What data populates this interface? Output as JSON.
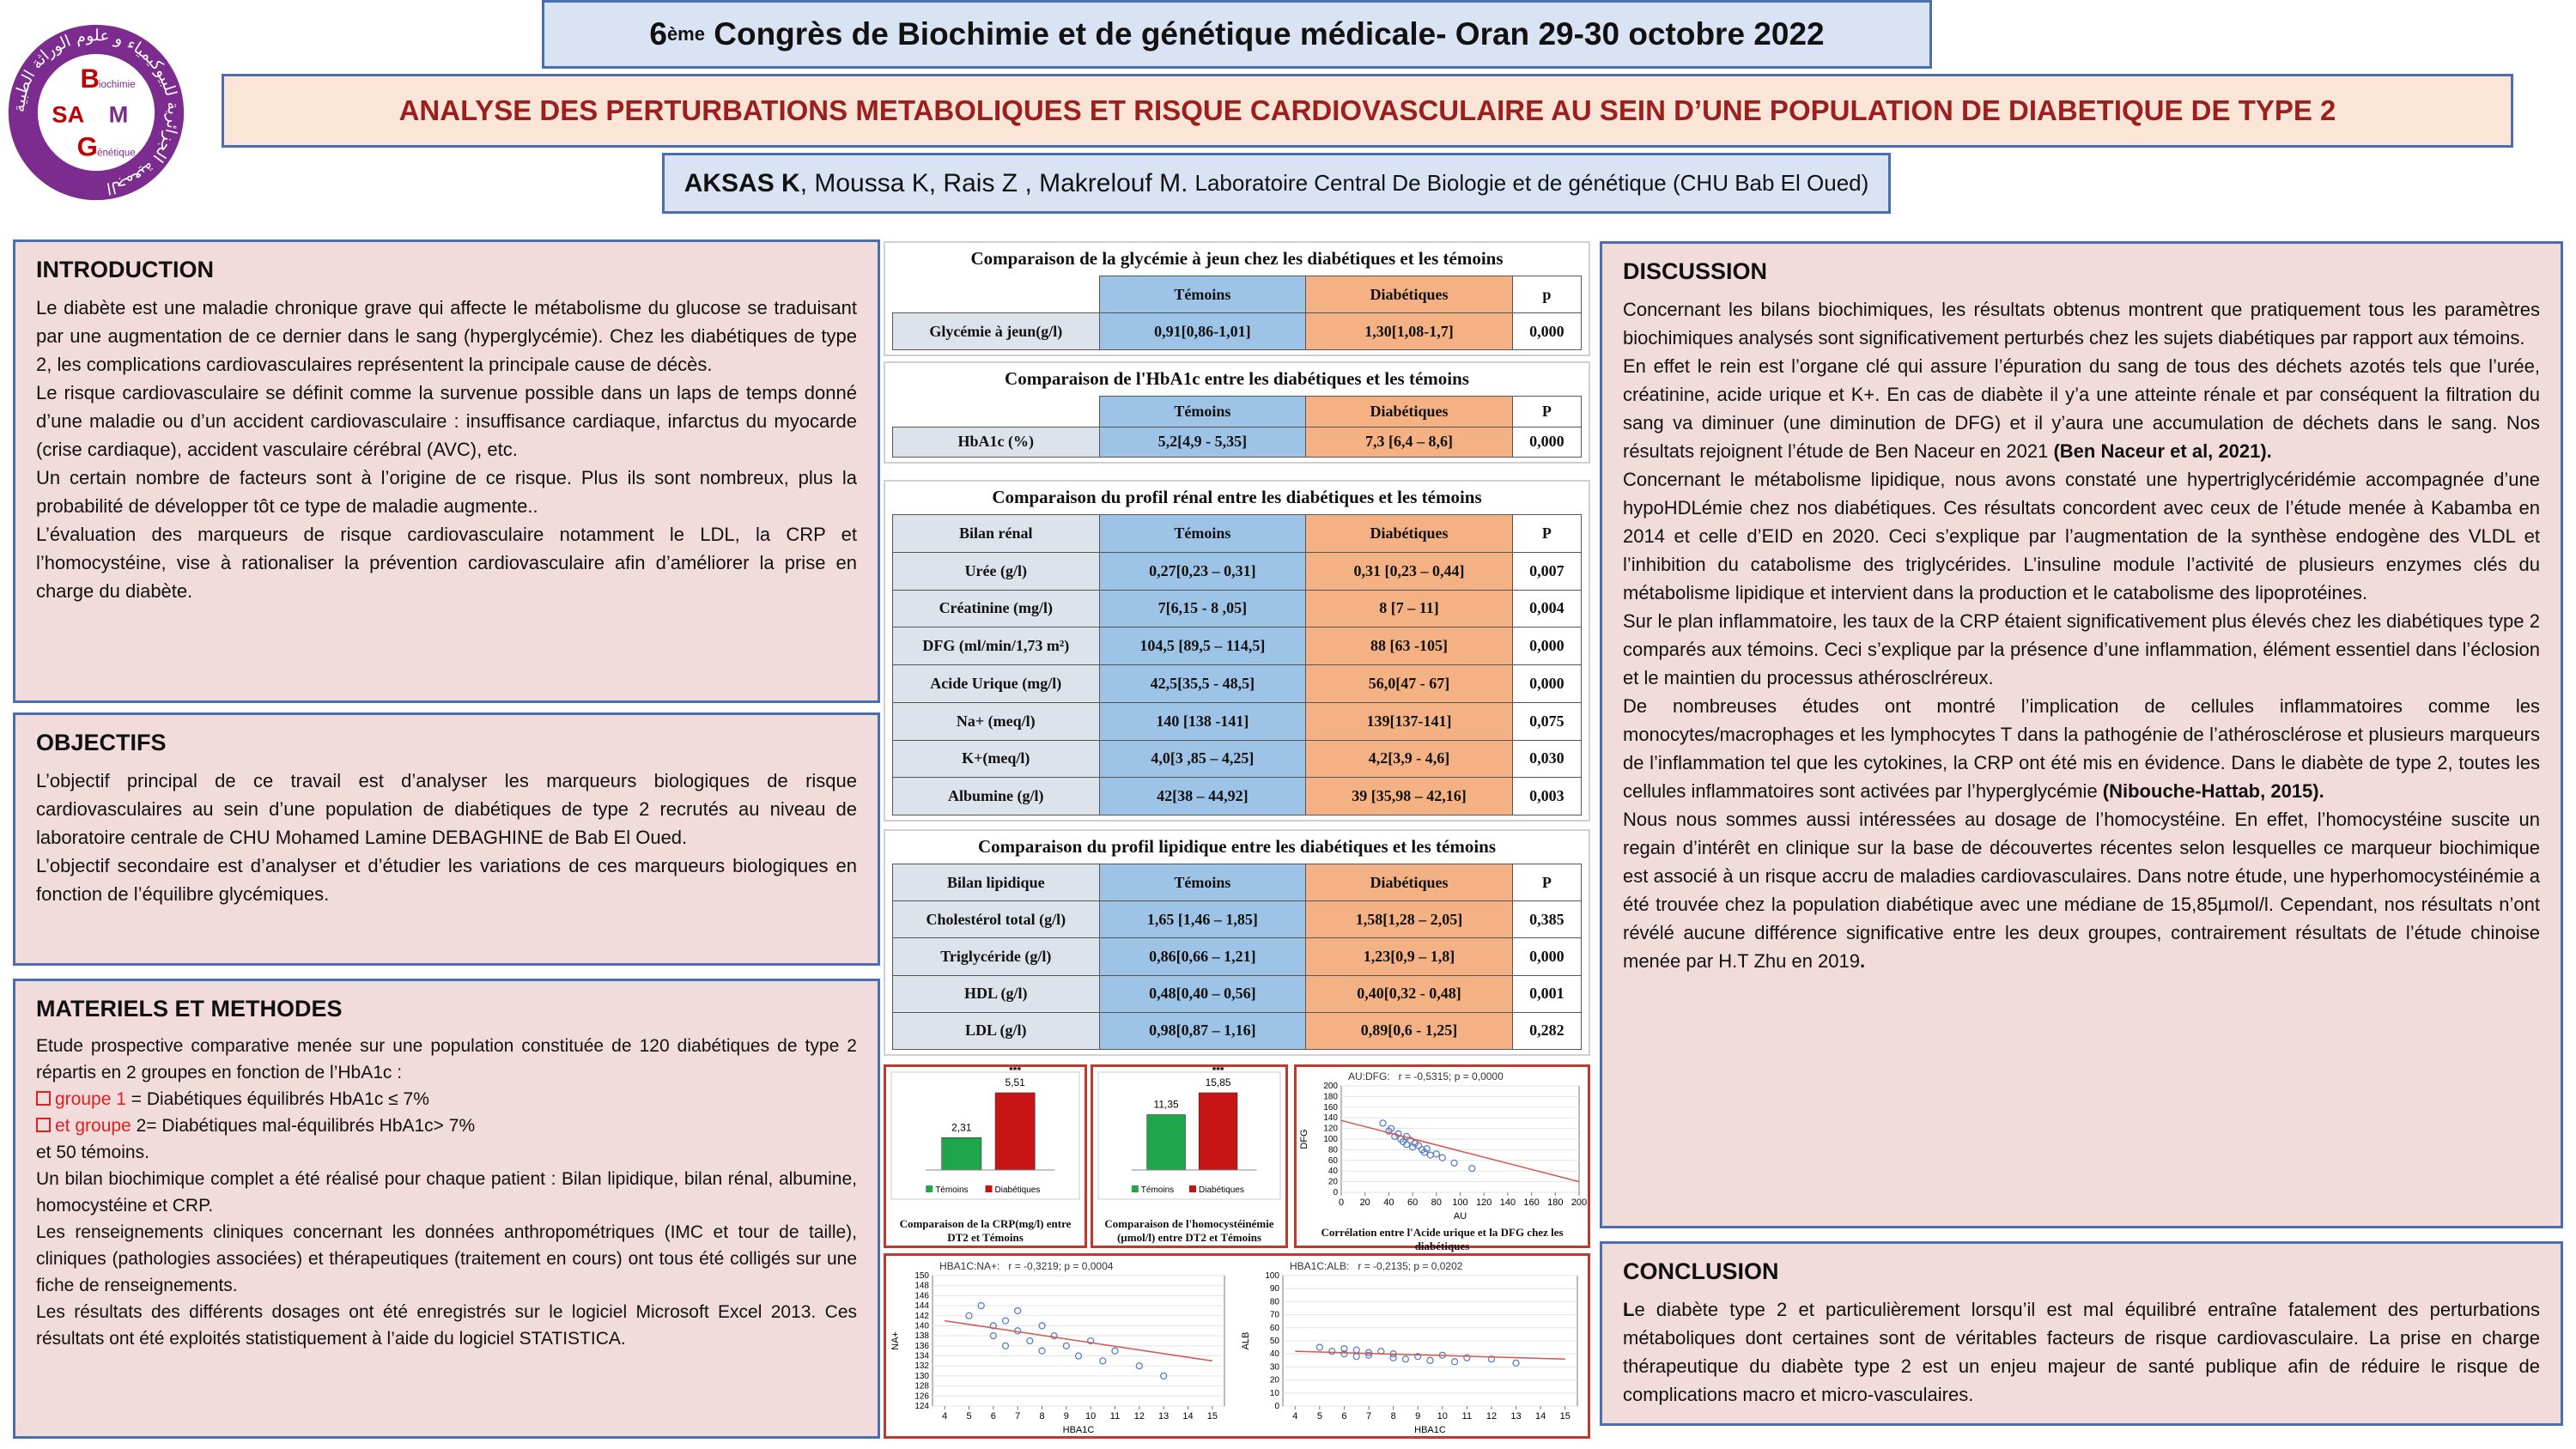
{
  "header": {
    "congress": [
      "6",
      "ème",
      " Congrès de Biochimie et de génétique médicale- Oran 29-30 octobre 2022"
    ],
    "title": "ANALYSE DES PERTURBATIONS METABOLIQUES ET RISQUE CARDIOVASCULAIRE AU SEIN D’UNE POPULATION DE DIABETIQUE DE TYPE 2",
    "authors": [
      "AKSAS K",
      ", Moussa K, Rais Z , Makrelouf M.",
      "Laboratoire Central De Biologie et de génétique (CHU Bab El Oued)"
    ]
  },
  "logo": {
    "arabic": "الجمعية الجزائرية للبيوكيمياء و علوم الوراثة الطبية",
    "letters": [
      "B",
      "iochimie",
      "SA",
      "M",
      "G",
      "énétique"
    ]
  },
  "sections": {
    "introduction": {
      "title": "INTRODUCTION",
      "paragraphs": [
        [
          "Le diabète est une maladie chronique grave qui affecte le métabolisme du glucose se traduisant par une augmentation de ce dernier dans le sang (hyperglycémie). Chez les diabétiques de type 2, les complications cardiovasculaires représentent la principale cause de décès."
        ],
        [
          "Le risque cardiovasculaire se définit comme la survenue possible dans un laps de temps donné d’une maladie ou d’un accident cardiovasculaire : insuffisance cardiaque, infarctus du myocarde (crise cardiaque), accident vasculaire cérébral (AVC), etc."
        ],
        [
          "Un certain nombre de facteurs sont à l’origine de ce risque. Plus ils sont nombreux, plus la probabilité de développer tôt ce type de maladie augmente.."
        ],
        [
          "L’évaluation des marqueurs de risque cardiovasculaire notamment le LDL, la CRP et l’homocystéine, vise à rationaliser la prévention cardiovasculaire afin d’améliorer la prise en charge du diabète."
        ]
      ]
    },
    "objectifs": {
      "title": "OBJECTIFS",
      "paragraphs": [
        [
          "L’objectif principal de ce travail est d’analyser les marqueurs biologiques de risque cardiovasculaires au sein d’une population de diabétiques de type 2 recrutés au niveau de laboratoire centrale de CHU Mohamed Lamine DEBAGHINE de Bab El Oued."
        ],
        [
          "L’objectif secondaire est d’analyser et d’étudier les variations de ces marqueurs biologiques en fonction de l’équilibre glycémiques."
        ]
      ]
    },
    "methodes": {
      "title": "MATERIELS ET METHODES",
      "paragraphs": [
        [
          "Etude prospective comparative menée sur une population constituée de 120 diabétiques de type 2 répartis en 2 groupes en fonction de l’HbA1c :"
        ],
        [
          {
            "text": "groupe 1",
            "style": "red-check"
          },
          " = Diabétiques équilibrés HbA1c ≤ 7%"
        ],
        [
          {
            "text": "et groupe",
            "style": "red-check"
          },
          " 2= Diabétiques mal-équilibrés HbA1c> 7%"
        ],
        [
          "et 50 témoins."
        ],
        [
          "Un bilan biochimique complet a été réalisé pour chaque patient : Bilan lipidique, bilan rénal, albumine, homocystéine et CRP."
        ],
        [
          "Les renseignements cliniques concernant les données anthropométriques (IMC et tour de taille), cliniques (pathologies associées) et thérapeutiques (traitement en cours) ont tous été colligés sur une fiche de renseignements."
        ],
        [
          "Les résultats des différents dosages ont été enregistrés sur le logiciel Microsoft Excel 2013. Ces résultats ont été exploités statistiquement à l’aide du logiciel STATISTICA."
        ]
      ]
    },
    "discussion": {
      "title": "DISCUSSION",
      "paragraphs": [
        [
          "Concernant les bilans biochimiques, les résultats obtenus montrent que pratiquement tous les paramètres biochimiques analysés sont significativement perturbés chez les sujets diabétiques par rapport aux témoins."
        ],
        [
          "En effet le rein est l’organe clé qui assure l’épuration du sang de tous des déchets azotés tels que l’urée, créatinine, acide urique et K+. En cas de diabète il y’a une atteinte rénale et par conséquent la filtration du sang va diminuer (une diminution de DFG) et il y’aura une accumulation de déchets dans le sang. Nos résultats rejoignent l’étude de Ben Naceur en 2021 ",
          {
            "text": "(Ben Naceur et al, 2021).",
            "style": "bold"
          }
        ],
        [
          "Concernant le métabolisme lipidique, nous avons constaté une hypertriglycéridémie accompagnée d’une hypoHDLémie chez nos diabétiques. Ces résultats concordent avec ceux de l’étude menée à Kabamba en 2014 et celle d’EID en 2020. Ceci s’explique par l’augmentation de la synthèse endogène des VLDL et l’inhibition du catabolisme des triglycérides. L’insuline module l’activité de plusieurs enzymes clés du métabolisme lipidique et intervient dans la production et le catabolisme des lipoprotéines."
        ],
        [
          "Sur le plan inflammatoire, les taux de la CRP étaient significativement plus élevés chez les diabétiques type 2 comparés aux témoins. Ceci s’explique par la présence d’une inflammation, élément essentiel dans l’éclosion et le maintien du processus athérosclréreux."
        ],
        [
          "De nombreuses études ont montré l’implication de cellules inflammatoires comme les monocytes/macrophages et les lymphocytes T dans la pathogénie de l’athérosclérose et plusieurs marqueurs de l’inflammation tel que les cytokines, la CRP ont été mis en évidence. Dans le diabète de type 2, toutes les cellules inflammatoires sont activées par l’hyperglycémie ",
          {
            "text": "(Nibouche-Hattab, 2015).",
            "style": "bold"
          }
        ],
        [
          "Nous nous sommes aussi intéressées au dosage de l’homocystéine. En effet, l’homocystéine suscite un regain d’intérêt en clinique sur la base de découvertes récentes selon lesquelles ce marqueur biochimique est associé à un risque accru de maladies cardiovasculaires. Dans notre étude, une hyperhomocystéinémie a été trouvée chez la population diabétique avec une médiane de 15,85µmol/l. Cependant, nos résultats n’ont révélé aucune différence significative entre les deux groupes, contrairement résultats de l’étude chinoise menée par H.T Zhu en 2019",
          {
            "text": ".",
            "style": "bold"
          }
        ]
      ]
    },
    "conclusion": {
      "title": "CONCLUSION",
      "paragraphs": [
        [
          {
            "text": "L",
            "style": "bold"
          },
          "e diabète type 2 et particulièrement lorsqu’il est mal équilibré entraîne fatalement des perturbations métaboliques dont certaines sont de véritables facteurs de risque cardiovasculaire. La prise en charge thérapeutique du diabète type 2 est un enjeu majeur de santé publique afin de réduire le risque de complications macro et micro-vasculaires."
        ]
      ]
    }
  },
  "tables": [
    {
      "title": "Comparaison de la glycémie à jeun chez les diabétiques et les témoins",
      "headers": [
        "Témoins",
        "Diabétiques",
        "p"
      ],
      "rows": [
        [
          "Glycémie à jeun(g/l)",
          "0,91[0,86-1,01]",
          "1,30[1,08-1,7]",
          "0,000"
        ]
      ]
    },
    {
      "title": "Comparaison de l'HbA1c entre les diabétiques et les témoins",
      "headers": [
        "Témoins",
        "Diabétiques",
        "P"
      ],
      "rows": [
        [
          "HbA1c (%)",
          "5,2[4,9 - 5,35]",
          "7,3 [6,4 – 8,6]",
          "0,000"
        ]
      ]
    },
    {
      "title": "Comparaison du profil rénal entre les diabétiques et les témoins",
      "headers": [
        "Bilan rénal",
        "Témoins",
        "Diabétiques",
        "P"
      ],
      "rows": [
        [
          "Urée (g/l)",
          "0,27[0,23 – 0,31]",
          "0,31 [0,23 – 0,44]",
          "0,007"
        ],
        [
          "Créatinine (mg/l)",
          "7[6,15 - 8 ,05]",
          "8 [7 – 11]",
          "0,004"
        ],
        [
          "DFG (ml/min/1,73 m²)",
          "104,5 [89,5 – 114,5]",
          "88 [63 -105]",
          "0,000"
        ],
        [
          "Acide Urique (mg/l)",
          "42,5[35,5 - 48,5]",
          "56,0[47 - 67]",
          "0,000"
        ],
        [
          "Na+ (meq/l)",
          "140 [138 -141]",
          "139[137-141]",
          "0,075"
        ],
        [
          "K+(meq/l)",
          "4,0[3 ,85 – 4,25]",
          "4,2[3,9 - 4,6]",
          "0,030"
        ],
        [
          "Albumine (g/l)",
          "42[38 – 44,92]",
          "39 [35,98 – 42,16]",
          "0,003"
        ]
      ]
    },
    {
      "title": "Comparaison du profil lipidique entre les diabétiques et les témoins",
      "headers": [
        "Bilan lipidique",
        "Témoins",
        "Diabétiques",
        "P"
      ],
      "rows": [
        [
          "Cholestérol total (g/l)",
          "1,65 [1,46 – 1,85]",
          "1,58[1,28 – 2,05]",
          "0,385"
        ],
        [
          "Triglycéride (g/l)",
          "0,86[0,66 – 1,21]",
          "1,23[0,9 – 1,8]",
          "0,000"
        ],
        [
          "HDL (g/l)",
          "0,48[0,40 – 0,56]",
          "0,40[0,32 - 0,48]",
          "0,001"
        ],
        [
          "LDL (g/l)",
          "0,98[0,87 – 1,16]",
          "0,89[0,6 - 1,25]",
          "0,282"
        ]
      ]
    }
  ],
  "figures": [
    {
      "type": "bar",
      "caption": "Comparaison de la CRP(mg/l) entre DT2 et Témoins",
      "categories": [
        "Témoins",
        "Diabétiques"
      ],
      "values": [
        2.31,
        5.51
      ],
      "value_labels": [
        "2,31",
        "5,51"
      ],
      "colors": [
        "#1fa64a",
        "#c81414"
      ],
      "annotation": "***"
    },
    {
      "type": "bar",
      "caption": "Comparaison de l'homocystéinémie (µmol/l) entre DT2 et Témoins",
      "categories": [
        "Témoins",
        "Diabétiques"
      ],
      "values": [
        11.35,
        15.85
      ],
      "value_labels": [
        "11,35",
        "15,85"
      ],
      "colors": [
        "#1fa64a",
        "#c81414"
      ],
      "annotation": "***"
    },
    {
      "type": "scatter",
      "title": "AU:DFG:   r = -0,5315; p = 0,0000",
      "x_label": "AU",
      "y_label": "DFG",
      "caption": "Corrélation entre l'Acide urique et la DFG chez les diabétiques",
      "xlim": [
        0,
        200
      ],
      "ylim": [
        0,
        200
      ],
      "xticks": [
        0,
        20,
        40,
        60,
        80,
        100,
        120,
        140,
        160,
        180,
        200
      ],
      "yticks": [
        0,
        20,
        40,
        60,
        80,
        100,
        120,
        140,
        160,
        180,
        200
      ],
      "x": [
        35,
        40,
        42,
        45,
        48,
        50,
        52,
        55,
        55,
        58,
        60,
        62,
        65,
        68,
        70,
        72,
        75,
        80,
        85,
        95,
        110
      ],
      "values": [
        130,
        115,
        120,
        105,
        110,
        100,
        95,
        105,
        90,
        98,
        85,
        92,
        88,
        80,
        75,
        82,
        70,
        72,
        65,
        55,
        45
      ],
      "trend": {
        "x": [
          0,
          200
        ],
        "y": [
          135,
          20
        ]
      },
      "color": "#5b7fc0",
      "trend_color": "#d9534f"
    },
    {
      "type": "scatter",
      "title": "HBA1C:NA+:   r = -0,3219; p = 0,0004",
      "x_label": "HBA1C",
      "y_label": "NA+",
      "xlim": [
        3.5,
        15.5
      ],
      "ylim": [
        124,
        150
      ],
      "xticks": [
        4,
        5,
        6,
        7,
        8,
        9,
        10,
        11,
        12,
        13,
        14,
        15
      ],
      "yticks": [
        124,
        126,
        128,
        130,
        132,
        134,
        136,
        138,
        140,
        142,
        144,
        146,
        148,
        150
      ],
      "x": [
        5,
        5.5,
        6,
        6,
        6.5,
        6.5,
        7,
        7,
        7.5,
        8,
        8,
        8.5,
        9,
        9.5,
        10,
        10.5,
        11,
        12,
        13
      ],
      "values": [
        142,
        144,
        140,
        138,
        141,
        136,
        143,
        139,
        137,
        140,
        135,
        138,
        136,
        134,
        137,
        133,
        135,
        132,
        130
      ],
      "trend": {
        "x": [
          4,
          15
        ],
        "y": [
          141,
          133
        ]
      },
      "color": "#5b7fc0",
      "trend_color": "#d9534f"
    },
    {
      "type": "scatter",
      "title": "HBA1C:ALB:   r = -0,2135; p = 0,0202",
      "x_label": "HBA1C",
      "y_label": "ALB",
      "xlim": [
        3.5,
        15.5
      ],
      "ylim": [
        0,
        100
      ],
      "xticks": [
        4,
        5,
        6,
        7,
        8,
        9,
        10,
        11,
        12,
        13,
        14,
        15
      ],
      "yticks": [
        0,
        10,
        20,
        30,
        40,
        50,
        60,
        70,
        80,
        90,
        100
      ],
      "x": [
        5,
        5.5,
        6,
        6,
        6.5,
        6.5,
        7,
        7,
        7.5,
        8,
        8,
        8.5,
        9,
        9.5,
        10,
        10.5,
        11,
        12,
        13
      ],
      "values": [
        45,
        42,
        44,
        40,
        43,
        38,
        41,
        39,
        42,
        37,
        40,
        36,
        38,
        35,
        39,
        34,
        37,
        36,
        33
      ],
      "trend": {
        "x": [
          4,
          15
        ],
        "y": [
          42,
          36
        ]
      },
      "color": "#5b7fc0",
      "trend_color": "#d9534f"
    }
  ]
}
